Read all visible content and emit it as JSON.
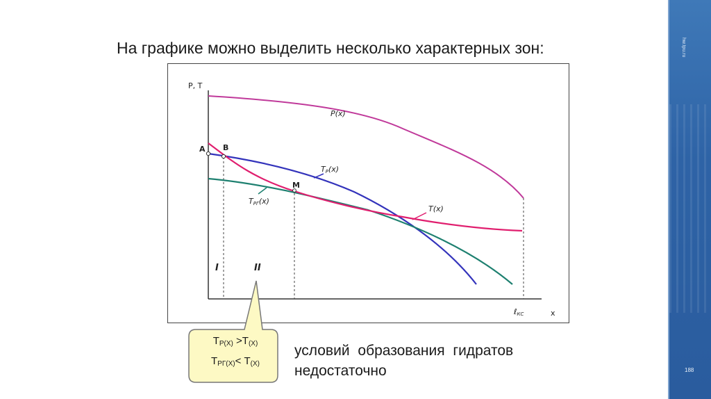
{
  "slide": {
    "title": "На графике можно выделить несколько характерных зон:",
    "site": "hw.tpu.ru",
    "page_number": "188"
  },
  "diagram": {
    "y_axis_label": "P, T",
    "x_axis_label": "x",
    "x_end_label_main": "ℓ",
    "x_end_label_sub": "КС",
    "point_A": "A",
    "point_B": "B",
    "point_M": "M",
    "zone_1": "I",
    "zone_2": "II",
    "curve_P": "P(x)",
    "curve_Tp_main": "T",
    "curve_Tp_sub": "P",
    "curve_Tp_arg": "(x)",
    "curve_Trg_main": "T",
    "curve_Trg_sub": "PГ",
    "curve_Trg_arg": "(x)",
    "curve_T": "T(x)",
    "colors": {
      "P": "#c0399a",
      "Tp": "#3333bb",
      "Trg": "#1e8070",
      "T": "#e01e6e",
      "axis": "#333333",
      "callout_fill": "#fdf9c4",
      "callout_stroke": "#777777",
      "sidebar": "#2e63a6"
    }
  },
  "callout": {
    "line1_T": "T",
    "line1_sub1": "P(X)",
    "line1_op": " >T",
    "line1_sub2": "(X)",
    "line2_T": "T",
    "line2_sub1": "PГ(X)",
    "line2_op": "< T",
    "line2_sub2": "(X)"
  },
  "note": {
    "line1": "условий образования гидратов",
    "line2": "недостаточно"
  }
}
